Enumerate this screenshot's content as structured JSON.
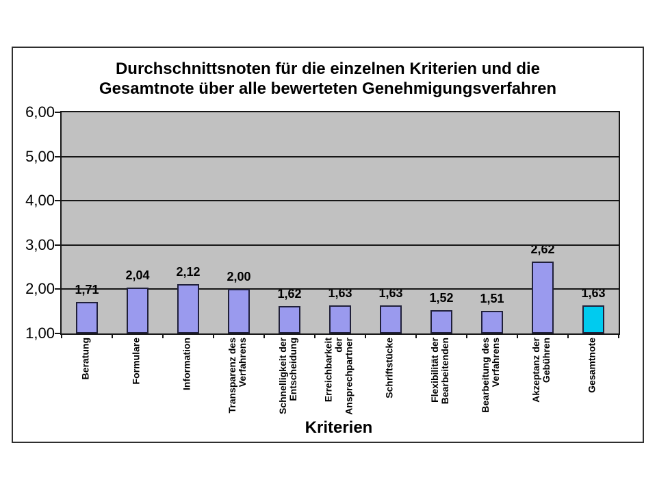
{
  "colors": {
    "plot_bg": "#C1C1C1",
    "grid": "#161616",
    "bar_fill": "#9A9AEE",
    "bar_border": "#20203A",
    "total_fill": "#00CBEF",
    "frame_border": "#2F2F2F",
    "text": "#000000"
  },
  "chart_data": {
    "type": "bar",
    "title": "Durchschnittsnoten für die einzelnen Kriterien und die\nGesamtnote über alle bewerteten Genehmigungsverfahren",
    "xlabel": "Kriterien",
    "ylabel": "",
    "ylim": [
      1.0,
      6.0
    ],
    "grid": true,
    "legend": false,
    "ytick_values": [
      6,
      5,
      4,
      3,
      2,
      1
    ],
    "ytick_labels": [
      "6,00",
      "5,00",
      "4,00",
      "3,00",
      "2,00",
      "1,00"
    ],
    "categories": [
      "Beratung",
      "Formulare",
      "Information",
      "Transparenz des\nVerfahrens",
      "Schnelligkeit der\nEntscheidung",
      "Erreichbarkeit\nder\nAnsprechpartner",
      "Schriftstücke",
      "Flexibilität der\nBearbeitenden",
      "Bearbeitung des\nVerfahrens",
      "Akzeptanz der\nGebühren",
      "Gesamtnote"
    ],
    "values": [
      1.71,
      2.04,
      2.12,
      2.0,
      1.62,
      1.63,
      1.63,
      1.52,
      1.51,
      2.62,
      1.63
    ],
    "value_labels": [
      "1,71",
      "2,04",
      "2,12",
      "2,00",
      "1,62",
      "1,63",
      "1,63",
      "1,52",
      "1,51",
      "2,62",
      "1,63"
    ],
    "highlight_index": 10
  }
}
